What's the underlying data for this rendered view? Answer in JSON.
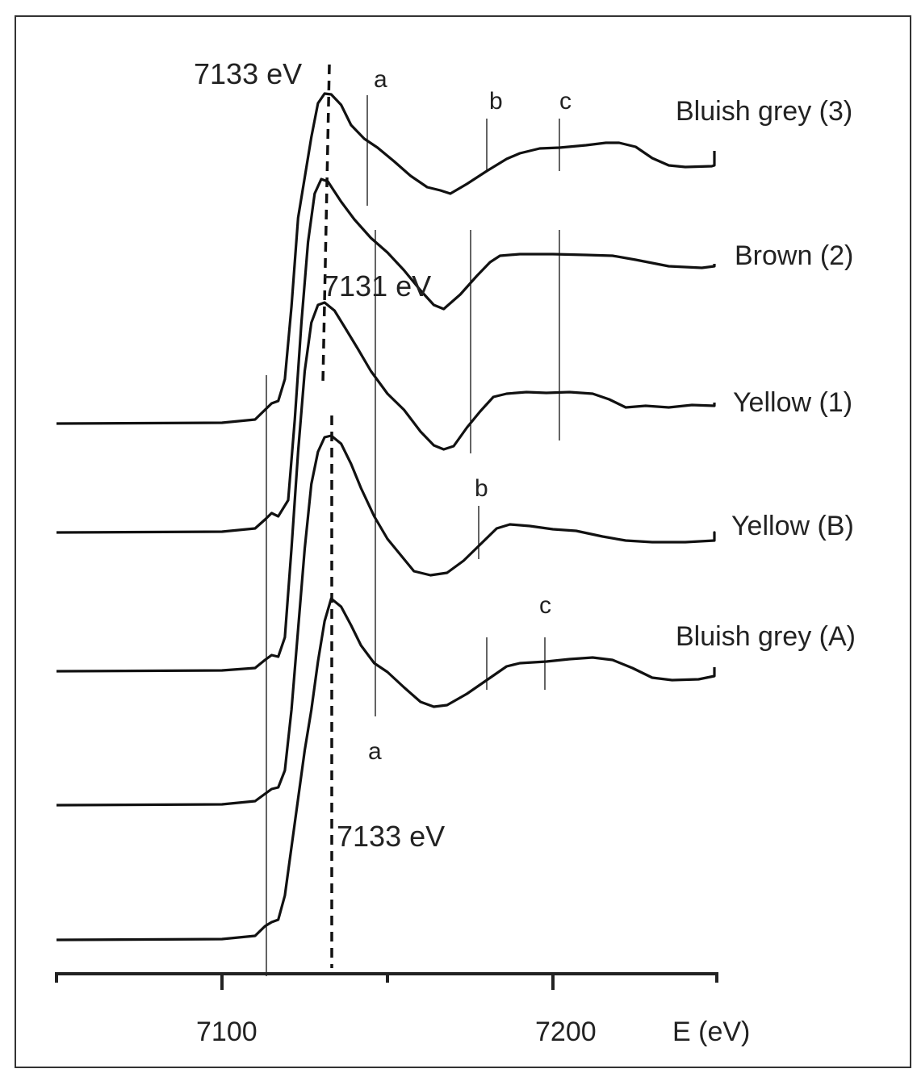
{
  "chart_data": {
    "type": "line",
    "title": "",
    "xlabel": "E (eV)",
    "ylabel": "",
    "xlim": [
      7050,
      7250
    ],
    "x_ticks": [
      7050,
      7100,
      7150,
      7200,
      7250
    ],
    "x_tick_labels": [
      {
        "value": 7100,
        "label": "7100"
      },
      {
        "value": 7200,
        "label": "7200"
      }
    ],
    "grid": false,
    "legend": "inline labels at right end of each curve",
    "series": [
      {
        "name": "Bluish grey (3)",
        "edge_peak_eV": 7133,
        "offset_rank": 1,
        "points": [
          [
            7050,
            525
          ],
          [
            7100,
            524
          ],
          [
            7110,
            520
          ],
          [
            7113,
            508
          ],
          [
            7115,
            500
          ],
          [
            7117,
            497
          ],
          [
            7119,
            470
          ],
          [
            7121,
            380
          ],
          [
            7123,
            270
          ],
          [
            7125,
            220
          ],
          [
            7127,
            170
          ],
          [
            7129,
            128
          ],
          [
            7131,
            116
          ],
          [
            7133,
            117
          ],
          [
            7136,
            130
          ],
          [
            7139,
            155
          ],
          [
            7143,
            172
          ],
          [
            7147,
            183
          ],
          [
            7152,
            200
          ],
          [
            7157,
            218
          ],
          [
            7162,
            232
          ],
          [
            7166,
            236
          ],
          [
            7169,
            240
          ],
          [
            7174,
            228
          ],
          [
            7180,
            212
          ],
          [
            7186,
            197
          ],
          [
            7190,
            190
          ],
          [
            7196,
            184
          ],
          [
            7202,
            183
          ],
          [
            7210,
            180
          ],
          [
            7216,
            177
          ],
          [
            7220,
            177
          ],
          [
            7225,
            182
          ],
          [
            7230,
            196
          ],
          [
            7235,
            205
          ],
          [
            7240,
            207
          ],
          [
            7248,
            206
          ],
          [
            7258,
            205
          ],
          [
            7268,
            202
          ],
          [
            7278,
            195
          ],
          [
            7284,
            192
          ],
          [
            7290,
            187
          ]
        ]
      },
      {
        "name": "Brown (2)",
        "edge_peak_eV": 7131,
        "offset_rank": 2,
        "points": [
          [
            7050,
            660
          ],
          [
            7100,
            659
          ],
          [
            7110,
            655
          ],
          [
            7113,
            644
          ],
          [
            7115,
            636
          ],
          [
            7117,
            640
          ],
          [
            7120,
            620
          ],
          [
            7122,
            520
          ],
          [
            7124,
            400
          ],
          [
            7126,
            300
          ],
          [
            7128,
            240
          ],
          [
            7130,
            222
          ],
          [
            7132,
            225
          ],
          [
            7136,
            250
          ],
          [
            7140,
            272
          ],
          [
            7145,
            295
          ],
          [
            7150,
            313
          ],
          [
            7155,
            335
          ],
          [
            7160,
            360
          ],
          [
            7164,
            378
          ],
          [
            7167,
            383
          ],
          [
            7172,
            365
          ],
          [
            7177,
            342
          ],
          [
            7181,
            325
          ],
          [
            7184,
            317
          ],
          [
            7190,
            315
          ],
          [
            7200,
            315
          ],
          [
            7210,
            316
          ],
          [
            7218,
            317
          ],
          [
            7225,
            322
          ],
          [
            7235,
            330
          ],
          [
            7245,
            332
          ],
          [
            7255,
            330
          ],
          [
            7265,
            328
          ],
          [
            7275,
            327
          ],
          [
            7290,
            327
          ]
        ]
      },
      {
        "name": "Yellow (1)",
        "edge_peak_eV": 7131,
        "offset_rank": 3,
        "points": [
          [
            7050,
            832
          ],
          [
            7100,
            831
          ],
          [
            7110,
            828
          ],
          [
            7113,
            818
          ],
          [
            7115,
            812
          ],
          [
            7117,
            814
          ],
          [
            7119,
            790
          ],
          [
            7121,
            680
          ],
          [
            7123,
            560
          ],
          [
            7125,
            460
          ],
          [
            7127,
            400
          ],
          [
            7129,
            378
          ],
          [
            7131,
            375
          ],
          [
            7134,
            385
          ],
          [
            7137,
            405
          ],
          [
            7141,
            432
          ],
          [
            7145,
            460
          ],
          [
            7150,
            488
          ],
          [
            7155,
            508
          ],
          [
            7160,
            535
          ],
          [
            7164,
            552
          ],
          [
            7167,
            557
          ],
          [
            7170,
            553
          ],
          [
            7174,
            530
          ],
          [
            7178,
            510
          ],
          [
            7182,
            492
          ],
          [
            7186,
            488
          ],
          [
            7192,
            486
          ],
          [
            7198,
            487
          ],
          [
            7205,
            486
          ],
          [
            7212,
            488
          ],
          [
            7217,
            495
          ],
          [
            7222,
            505
          ],
          [
            7228,
            503
          ],
          [
            7235,
            505
          ],
          [
            7242,
            502
          ],
          [
            7250,
            503
          ],
          [
            7260,
            500
          ],
          [
            7270,
            500
          ],
          [
            7280,
            499
          ],
          [
            7290,
            499
          ]
        ]
      },
      {
        "name": "Yellow (B)",
        "edge_peak_eV": 7133,
        "offset_rank": 4,
        "points": [
          [
            7050,
            998
          ],
          [
            7100,
            997
          ],
          [
            7110,
            993
          ],
          [
            7113,
            984
          ],
          [
            7115,
            978
          ],
          [
            7117,
            976
          ],
          [
            7119,
            955
          ],
          [
            7121,
            880
          ],
          [
            7123,
            780
          ],
          [
            7125,
            680
          ],
          [
            7127,
            600
          ],
          [
            7129,
            560
          ],
          [
            7131,
            542
          ],
          [
            7133,
            540
          ],
          [
            7136,
            550
          ],
          [
            7139,
            575
          ],
          [
            7142,
            605
          ],
          [
            7146,
            640
          ],
          [
            7150,
            668
          ],
          [
            7154,
            688
          ],
          [
            7158,
            708
          ],
          [
            7163,
            713
          ],
          [
            7168,
            710
          ],
          [
            7173,
            695
          ],
          [
            7178,
            675
          ],
          [
            7183,
            655
          ],
          [
            7187,
            650
          ],
          [
            7193,
            652
          ],
          [
            7200,
            656
          ],
          [
            7207,
            658
          ],
          [
            7215,
            665
          ],
          [
            7222,
            670
          ],
          [
            7230,
            672
          ],
          [
            7240,
            672
          ],
          [
            7250,
            670
          ],
          [
            7260,
            667
          ],
          [
            7268,
            666
          ],
          [
            7276,
            663
          ],
          [
            7283,
            660
          ],
          [
            7290,
            662
          ]
        ]
      },
      {
        "name": "Bluish grey (A)",
        "edge_peak_eV": 7133,
        "offset_rank": 5,
        "points": [
          [
            7050,
            1165
          ],
          [
            7100,
            1164
          ],
          [
            7110,
            1160
          ],
          [
            7113,
            1148
          ],
          [
            7115,
            1143
          ],
          [
            7117,
            1140
          ],
          [
            7119,
            1110
          ],
          [
            7121,
            1050
          ],
          [
            7123,
            990
          ],
          [
            7125,
            930
          ],
          [
            7127,
            880
          ],
          [
            7129,
            820
          ],
          [
            7131,
            770
          ],
          [
            7133,
            742
          ],
          [
            7136,
            752
          ],
          [
            7139,
            775
          ],
          [
            7142,
            800
          ],
          [
            7146,
            822
          ],
          [
            7150,
            833
          ],
          [
            7155,
            852
          ],
          [
            7160,
            870
          ],
          [
            7164,
            876
          ],
          [
            7168,
            874
          ],
          [
            7174,
            860
          ],
          [
            7180,
            843
          ],
          [
            7186,
            826
          ],
          [
            7190,
            822
          ],
          [
            7198,
            820
          ],
          [
            7205,
            817
          ],
          [
            7212,
            815
          ],
          [
            7218,
            818
          ],
          [
            7224,
            828
          ],
          [
            7230,
            840
          ],
          [
            7236,
            843
          ],
          [
            7244,
            842
          ],
          [
            7254,
            838
          ],
          [
            7264,
            835
          ],
          [
            7274,
            832
          ],
          [
            7282,
            830
          ],
          [
            7290,
            827
          ]
        ]
      }
    ],
    "reference_lines": [
      {
        "type": "solid",
        "eV": 7113,
        "label": ""
      },
      {
        "type": "dashed",
        "eV": 7133,
        "label": "7133 eV",
        "span": "upper"
      },
      {
        "type": "dashed",
        "eV": 7133,
        "label": "7133 eV",
        "span": "lower"
      },
      {
        "type": "annotation",
        "label": "7131 eV"
      }
    ],
    "feature_markers": [
      {
        "label": "a",
        "series": "Bluish grey (3)",
        "eV": 7145
      },
      {
        "label": "b",
        "series": "Bluish grey (3)",
        "eV": 7181
      },
      {
        "label": "c",
        "series": "Bluish grey (3)",
        "eV": 7204
      },
      {
        "label": "a",
        "series": "Brown (2) / Yellow (1) / Yellow (B) / Bluish grey (A)",
        "eV": 7147
      },
      {
        "label": "b",
        "series": "Brown (2) / Yellow (1)",
        "eV": 7176
      },
      {
        "label": "c",
        "series": "Brown (2) / Yellow (1)",
        "eV": 7204
      },
      {
        "label": "b",
        "series": "Yellow (B)",
        "eV": 7179
      },
      {
        "label": "b",
        "series": "Bluish grey (A)",
        "eV": 7181
      },
      {
        "label": "c",
        "series": "Bluish grey (A)",
        "eV": 7199
      }
    ]
  },
  "labels": {
    "series_3": "Bluish grey (3)",
    "series_2": "Brown (2)",
    "series_1": "Yellow (1)",
    "series_B": "Yellow (B)",
    "series_A": "Bluish grey (A)",
    "peak_top": "7133 eV",
    "peak_mid": "7131 eV",
    "peak_bottom": "7133 eV",
    "a_top": "a",
    "b_top": "b",
    "c_top": "c",
    "b_mid": "b",
    "c_mid": "c",
    "a_bottom": "a",
    "tick_7100": "7100",
    "tick_7200": "7200",
    "xlabel": "E (eV)"
  }
}
